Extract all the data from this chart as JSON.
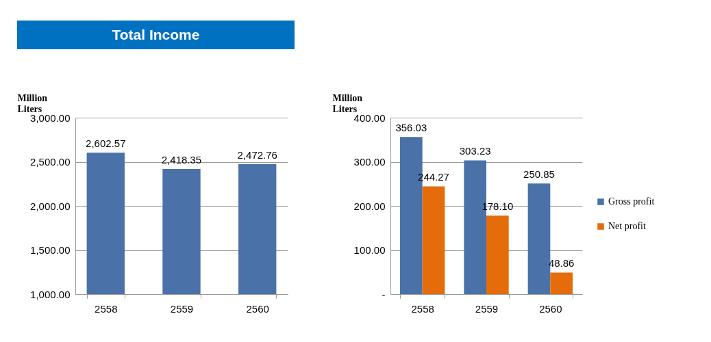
{
  "chart_data": [
    {
      "type": "bar",
      "title": "Total Income",
      "ylabel": "Million Liters",
      "categories": [
        "2558",
        "2559",
        "2560"
      ],
      "series": [
        {
          "color": "#4a72a8",
          "values": [
            2602.57,
            2418.35,
            2472.76
          ]
        }
      ],
      "ylim": [
        1000,
        3000
      ],
      "yticks": [
        {
          "value": 1000,
          "label": "1,000.00"
        },
        {
          "value": 1500,
          "label": "1,500.00"
        },
        {
          "value": 2000,
          "label": "2,000.00"
        },
        {
          "value": 2500,
          "label": "2,500.00"
        },
        {
          "value": 3000,
          "label": "3,000.00"
        }
      ],
      "value_labels": [
        "2,602.57",
        "2,418.35",
        "2,472.76"
      ],
      "grid": "y"
    },
    {
      "type": "bar",
      "ylabel": "Million Liters",
      "categories": [
        "2558",
        "2559",
        "2560"
      ],
      "series": [
        {
          "name": "Gross profit",
          "color": "#4a72a8",
          "values": [
            356.03,
            303.23,
            250.85
          ],
          "value_labels": [
            "356.03",
            "303.23",
            "250.85"
          ]
        },
        {
          "name": "Net profit",
          "color": "#e46c0a",
          "values": [
            244.27,
            178.1,
            48.86
          ],
          "value_labels": [
            "244.27",
            "178.10",
            "48.86"
          ]
        }
      ],
      "ylim": [
        0,
        400
      ],
      "yticks": [
        {
          "value": 0,
          "label": "-"
        },
        {
          "value": 100,
          "label": "100.00"
        },
        {
          "value": 200,
          "label": "200.00"
        },
        {
          "value": 300,
          "label": "300.00"
        },
        {
          "value": 400,
          "label": "400.00"
        }
      ],
      "grid": "y",
      "legend": "right"
    }
  ]
}
